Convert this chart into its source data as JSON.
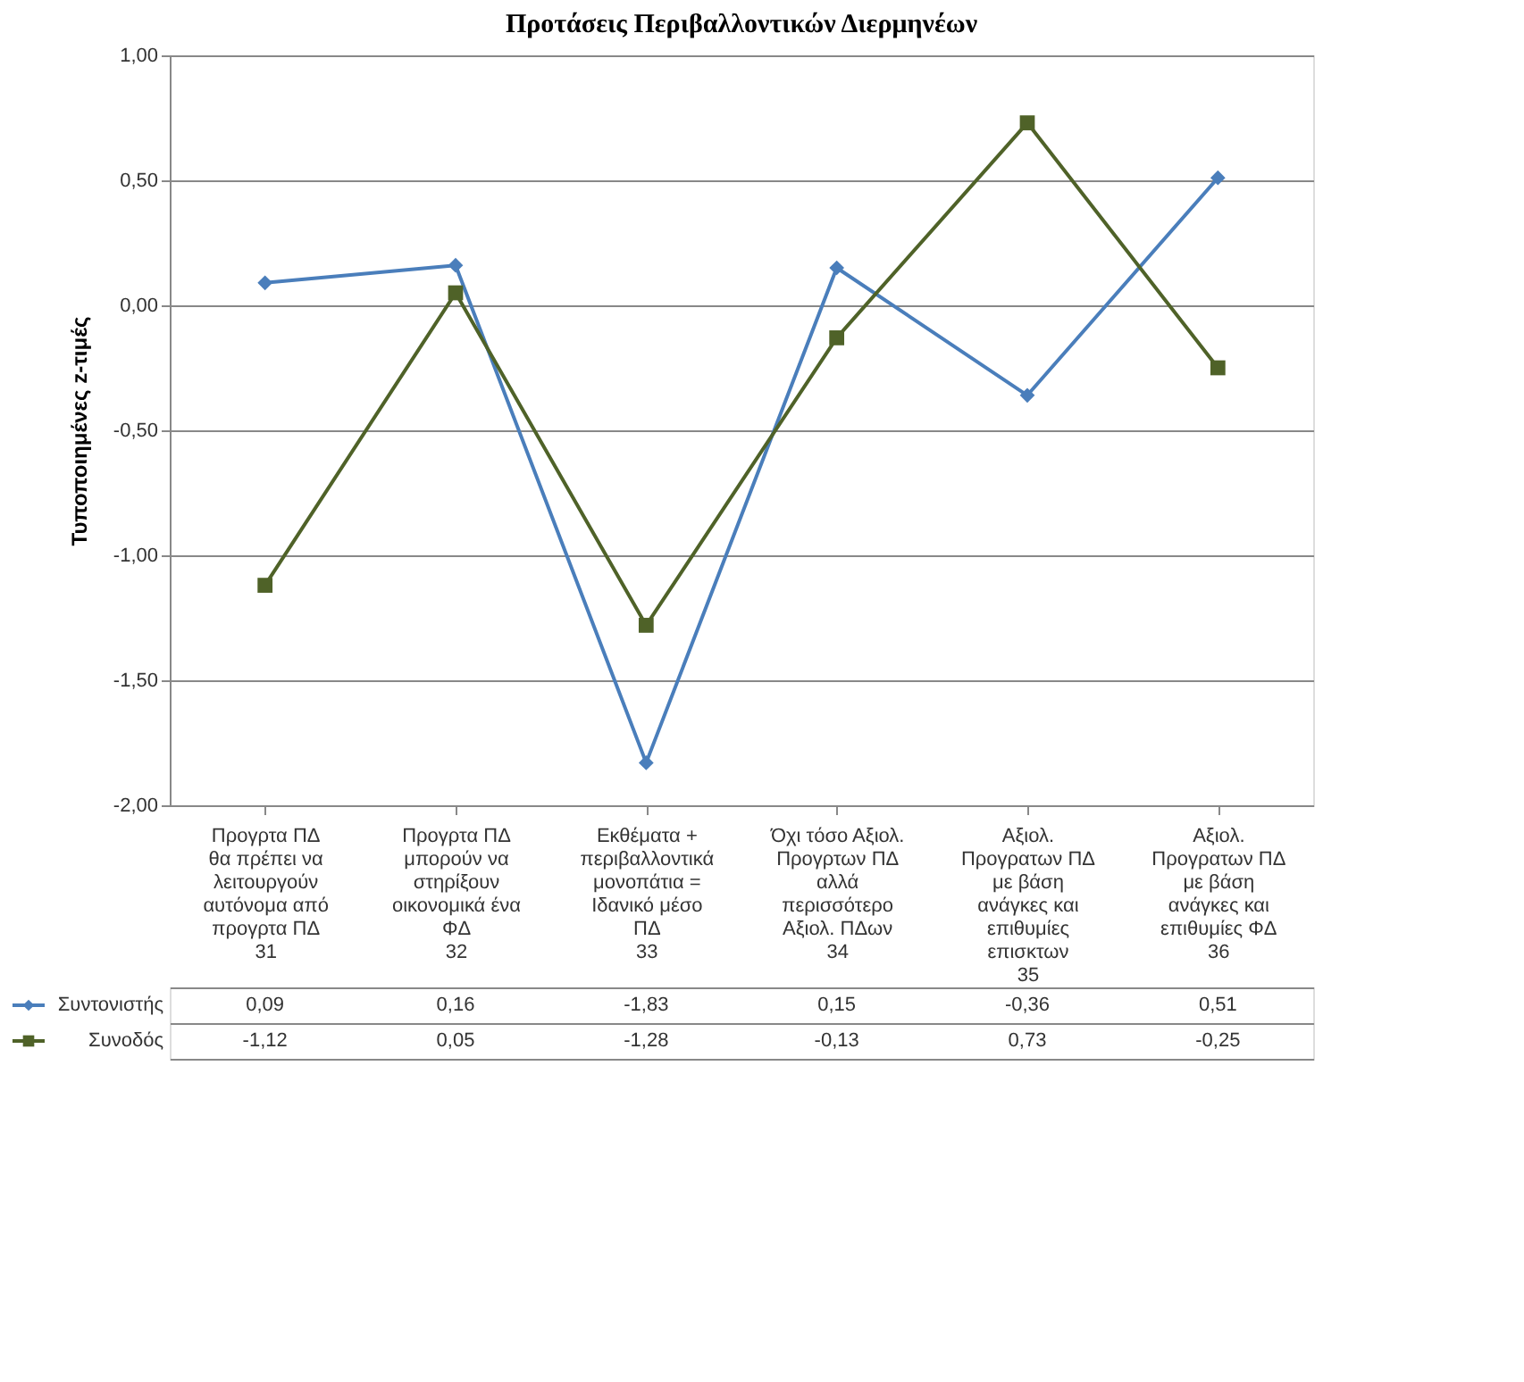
{
  "chart_data": {
    "type": "line",
    "title": "Προτάσεις Περιβαλλοντικών Διερμηνέων",
    "ylabel": "Τυποποιημένες z-τιμές",
    "categories": [
      "Προγρτα ΠΔ\nθα πρέπει να\nλειτουργούν\nαυτόνομα από\nπρογρτα ΠΔ\n\n31",
      "Προγρτα ΠΔ\nμπορούν να\nστηρίξουν\nοικονομικά ένα\nΦΔ\n\n32",
      "Εκθέματα +\nπεριβαλλοντικά\nμονοπάτια =\nΙδανικό μέσο\nΠΔ\n\n33",
      "Όχι τόσο Αξιολ.\nΠρογρτων ΠΔ\nαλλά\nπερισσότερο\nΑξιολ. ΠΔων\n\n34",
      "Αξιολ.\nΠρογρατων ΠΔ\nμε βάση\nανάγκες και\nεπιθυμίες\nεπισκτων\n35",
      "Αξιολ.\nΠρογρατων ΠΔ\nμε βάση\nανάγκες και\nεπιθυμίες ΦΔ\n\n36"
    ],
    "series": [
      {
        "name": "Συντονιστής",
        "color": "#4a7ebb",
        "marker": "diamond",
        "values": [
          0.09,
          0.16,
          -1.83,
          0.15,
          -0.36,
          0.51
        ],
        "value_labels": [
          "0,09",
          "0,16",
          "-1,83",
          "0,15",
          "-0,36",
          "0,51"
        ]
      },
      {
        "name": "Συνοδός",
        "color": "#4f6228",
        "marker": "square",
        "values": [
          -1.12,
          0.05,
          -1.28,
          -0.13,
          0.73,
          -0.25
        ],
        "value_labels": [
          "-1,12",
          "0,05",
          "-1,28",
          "-0,13",
          "0,73",
          "-0,25"
        ]
      }
    ],
    "ylim": [
      -2,
      1
    ],
    "yticks": [
      {
        "value": -2,
        "label": "-2,00"
      },
      {
        "value": -1.5,
        "label": "-1,50"
      },
      {
        "value": -1,
        "label": "-1,00"
      },
      {
        "value": -0.5,
        "label": "-0,50"
      },
      {
        "value": 0,
        "label": "0,00"
      },
      {
        "value": 0.5,
        "label": "0,50"
      },
      {
        "value": 1,
        "label": "1,00"
      }
    ],
    "grid": "y",
    "legend": "bottom left"
  }
}
